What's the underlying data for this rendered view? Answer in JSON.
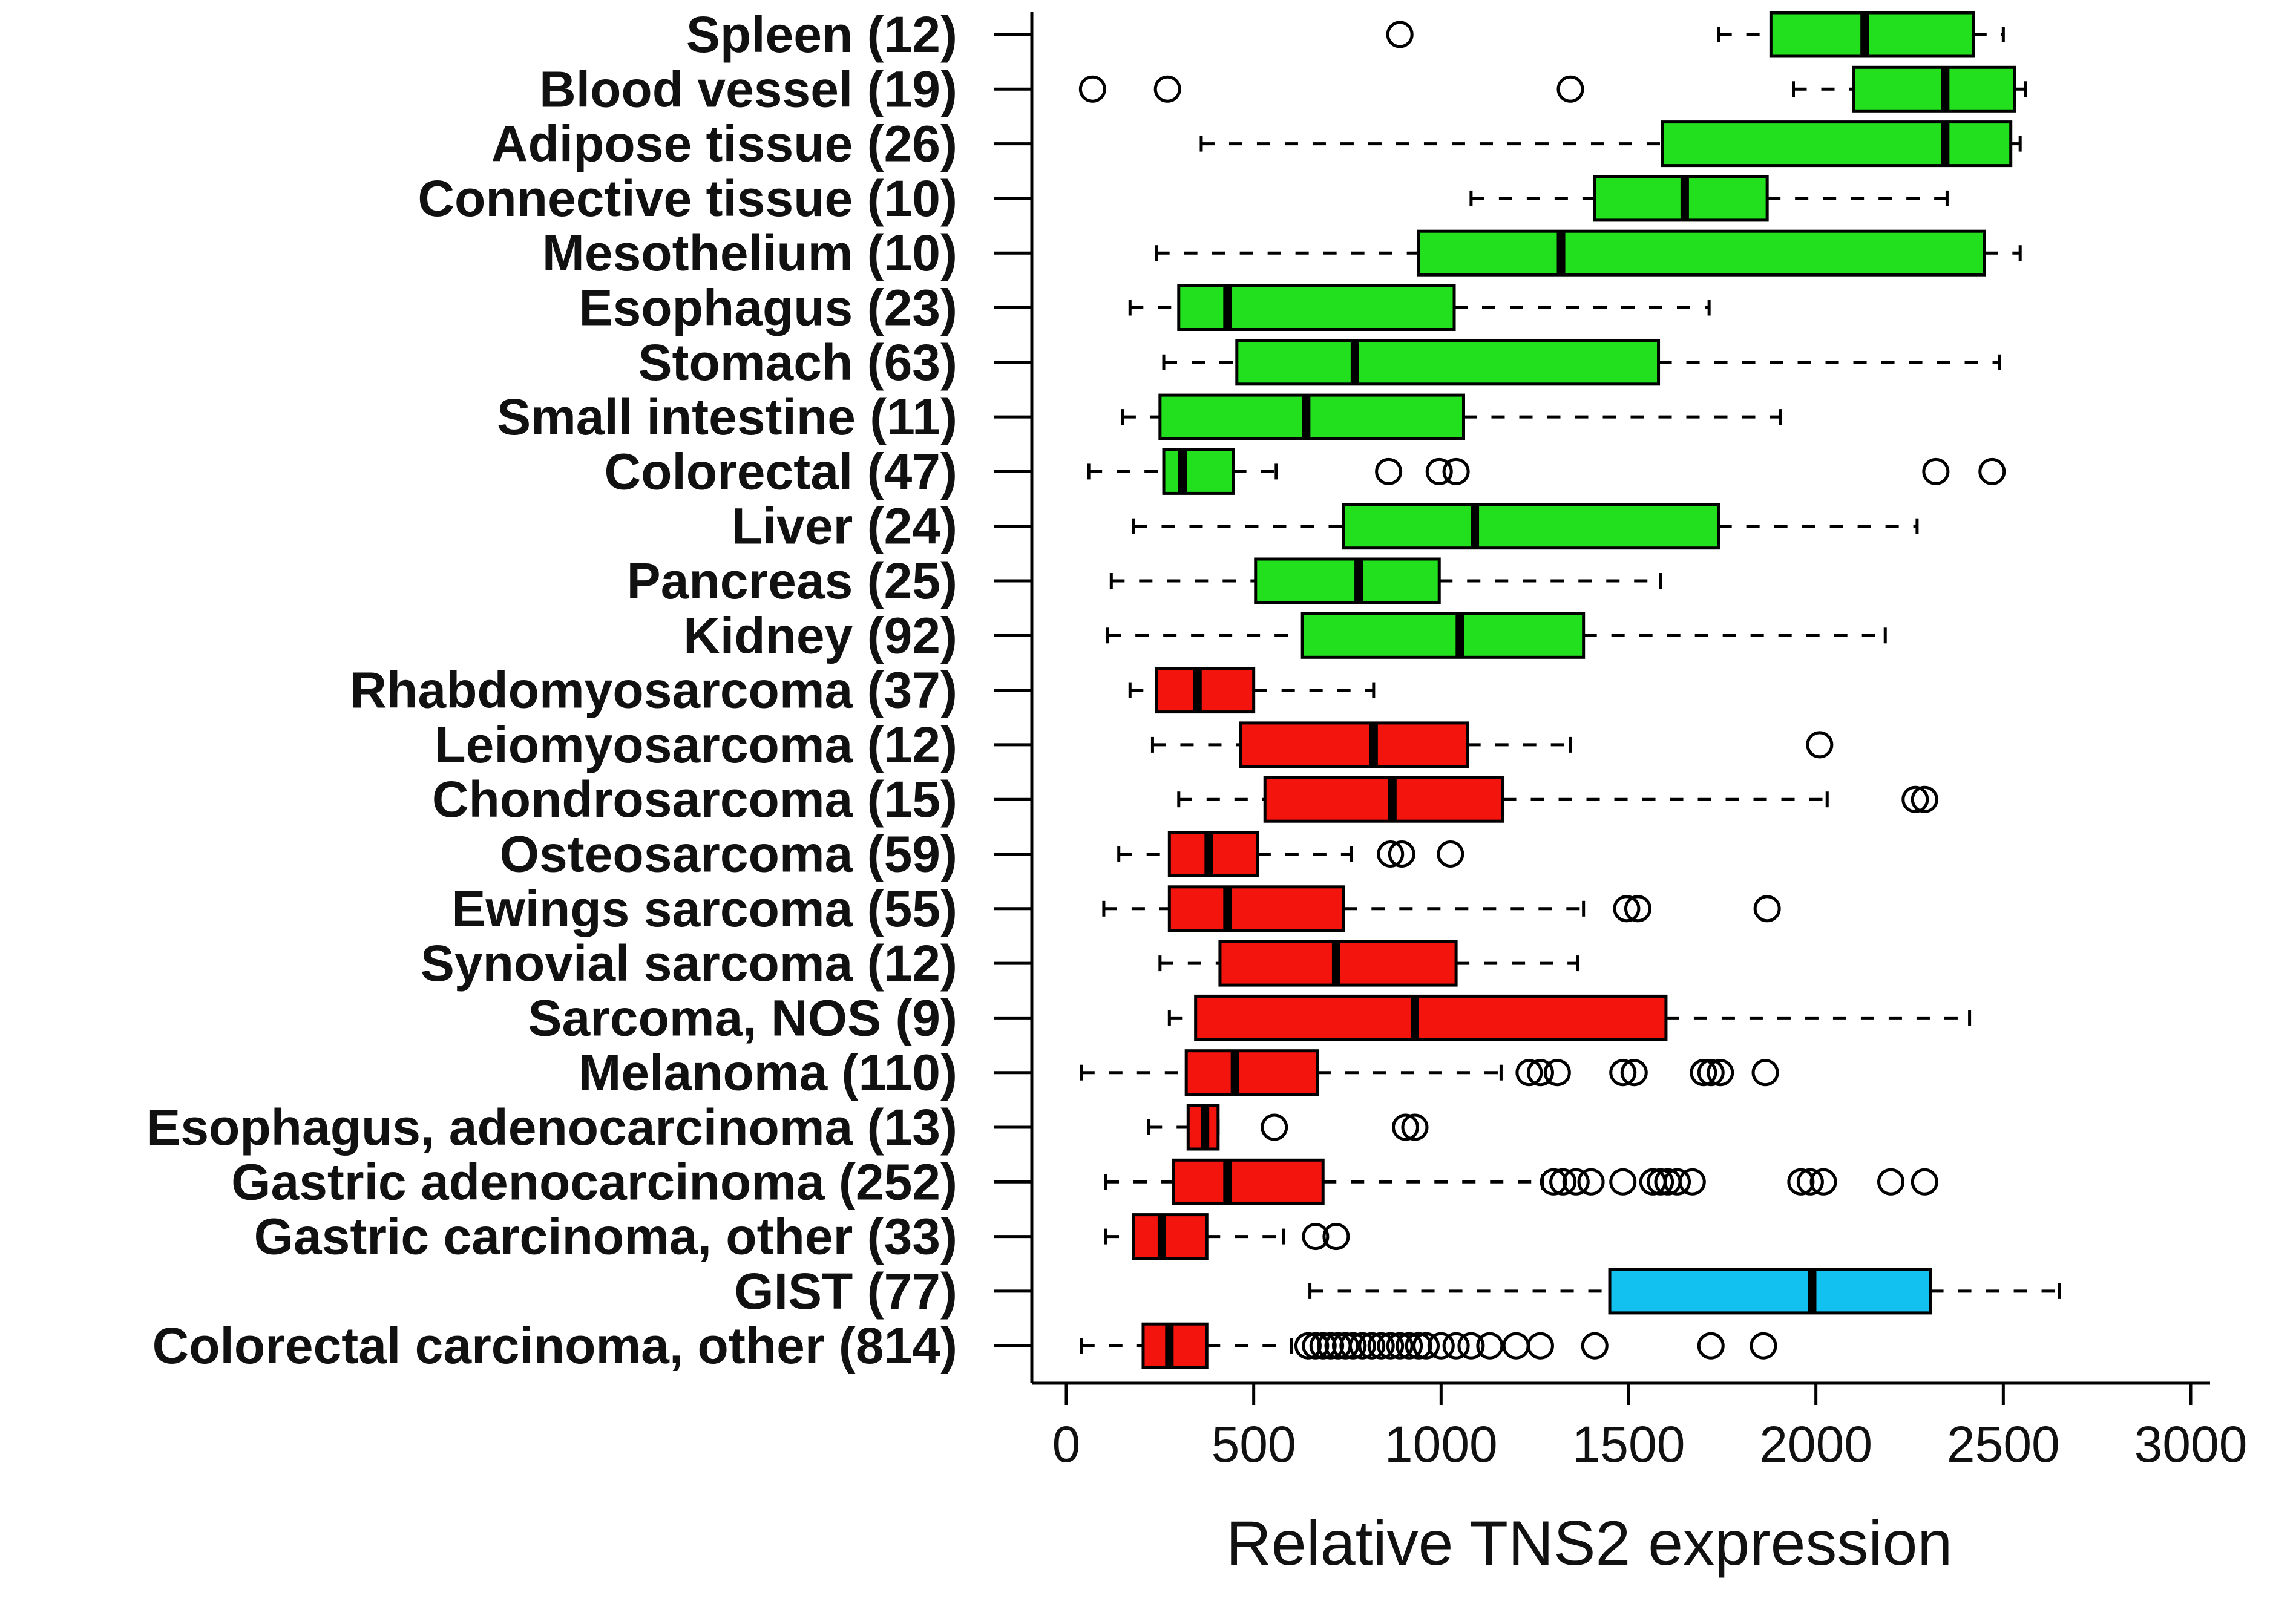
{
  "chart_data": {
    "type": "boxplot",
    "orientation": "horizontal",
    "xlabel": "Relative TNS2 expression",
    "xlim": [
      0,
      3000
    ],
    "xticks": [
      0,
      500,
      1000,
      1500,
      2000,
      2500,
      3000
    ],
    "xtick_labels": [
      "0",
      "500",
      "1000",
      "1500",
      "2000",
      "2500",
      "3000"
    ],
    "grid": false,
    "colors": {
      "normal": "#22e01e",
      "sarcoma": "#f4140e",
      "gist": "#12c1f0"
    },
    "groups": [
      {
        "label": "Spleen (12)",
        "group": "normal",
        "whisker_low": 1740,
        "q1": 1880,
        "median": 2130,
        "q3": 2420,
        "whisker_high": 2500,
        "outliers": [
          890
        ]
      },
      {
        "label": "Blood vessel (19)",
        "group": "normal",
        "whisker_low": 1940,
        "q1": 2100,
        "median": 2345,
        "q3": 2530,
        "whisker_high": 2560,
        "outliers": [
          70,
          270,
          1345
        ]
      },
      {
        "label": "Adipose tissue (26)",
        "group": "normal",
        "whisker_low": 360,
        "q1": 1590,
        "median": 2345,
        "q3": 2520,
        "whisker_high": 2545,
        "outliers": []
      },
      {
        "label": "Connective tissue (10)",
        "group": "normal",
        "whisker_low": 1080,
        "q1": 1410,
        "median": 1650,
        "q3": 1870,
        "whisker_high": 2350,
        "outliers": []
      },
      {
        "label": "Mesothelium (10)",
        "group": "normal",
        "whisker_low": 240,
        "q1": 940,
        "median": 1320,
        "q3": 2450,
        "whisker_high": 2545,
        "outliers": []
      },
      {
        "label": "Esophagus (23)",
        "group": "normal",
        "whisker_low": 170,
        "q1": 300,
        "median": 430,
        "q3": 1035,
        "whisker_high": 1715,
        "outliers": []
      },
      {
        "label": "Stomach (63)",
        "group": "normal",
        "whisker_low": 260,
        "q1": 455,
        "median": 770,
        "q3": 1580,
        "whisker_high": 2490,
        "outliers": []
      },
      {
        "label": "Small intestine (11)",
        "group": "normal",
        "whisker_low": 150,
        "q1": 250,
        "median": 640,
        "q3": 1060,
        "whisker_high": 1905,
        "outliers": []
      },
      {
        "label": "Colorectal (47)",
        "group": "normal",
        "whisker_low": 60,
        "q1": 260,
        "median": 310,
        "q3": 445,
        "whisker_high": 560,
        "outliers": [
          860,
          995,
          1040,
          2320,
          2470
        ]
      },
      {
        "label": "Liver (24)",
        "group": "normal",
        "whisker_low": 180,
        "q1": 740,
        "median": 1090,
        "q3": 1740,
        "whisker_high": 2270,
        "outliers": []
      },
      {
        "label": "Pancreas (25)",
        "group": "normal",
        "whisker_low": 120,
        "q1": 505,
        "median": 780,
        "q3": 995,
        "whisker_high": 1585,
        "outliers": []
      },
      {
        "label": "Kidney (92)",
        "group": "normal",
        "whisker_low": 110,
        "q1": 630,
        "median": 1050,
        "q3": 1380,
        "whisker_high": 2185,
        "outliers": []
      },
      {
        "label": "Rhabdomyosarcoma (37)",
        "group": "sarcoma",
        "whisker_low": 170,
        "q1": 240,
        "median": 350,
        "q3": 500,
        "whisker_high": 820,
        "outliers": []
      },
      {
        "label": "Leiomyosarcoma (12)",
        "group": "sarcoma",
        "whisker_low": 230,
        "q1": 465,
        "median": 820,
        "q3": 1070,
        "whisker_high": 1345,
        "outliers": [
          2010
        ]
      },
      {
        "label": "Chondrosarcoma (15)",
        "group": "sarcoma",
        "whisker_low": 300,
        "q1": 530,
        "median": 870,
        "q3": 1165,
        "whisker_high": 2030,
        "outliers": [
          2265,
          2290
        ]
      },
      {
        "label": "Osteosarcoma (59)",
        "group": "sarcoma",
        "whisker_low": 140,
        "q1": 275,
        "median": 380,
        "q3": 510,
        "whisker_high": 760,
        "outliers": [
          865,
          895,
          1025
        ]
      },
      {
        "label": "Ewings sarcoma (55)",
        "group": "sarcoma",
        "whisker_low": 100,
        "q1": 275,
        "median": 430,
        "q3": 740,
        "whisker_high": 1380,
        "outliers": [
          1495,
          1525,
          1870
        ]
      },
      {
        "label": "Synovial sarcoma (12)",
        "group": "sarcoma",
        "whisker_low": 250,
        "q1": 410,
        "median": 720,
        "q3": 1040,
        "whisker_high": 1365,
        "outliers": []
      },
      {
        "label": "Sarcoma, NOS (9)",
        "group": "sarcoma",
        "whisker_low": 275,
        "q1": 345,
        "median": 930,
        "q3": 1600,
        "whisker_high": 2410,
        "outliers": []
      },
      {
        "label": "Melanoma (110)",
        "group": "sarcoma",
        "whisker_low": 40,
        "q1": 320,
        "median": 450,
        "q3": 670,
        "whisker_high": 1160,
        "outliers": [
          1235,
          1265,
          1310,
          1485,
          1515,
          1700,
          1720,
          1745,
          1865
        ]
      },
      {
        "label": "Esophagus, adenocarcinoma (13)",
        "group": "sarcoma",
        "whisker_low": 220,
        "q1": 325,
        "median": 370,
        "q3": 405,
        "whisker_high": 405,
        "outliers": [
          555,
          905,
          930
        ]
      },
      {
        "label": "Gastric adenocarcinoma (252)",
        "group": "sarcoma",
        "whisker_low": 105,
        "q1": 285,
        "median": 430,
        "q3": 685,
        "whisker_high": 1270,
        "outliers": [
          1300,
          1325,
          1360,
          1400,
          1485,
          1565,
          1585,
          1605,
          1630,
          1670,
          1960,
          1985,
          2020,
          2200,
          2290
        ]
      },
      {
        "label": "Gastric carcinoma, other (33)",
        "group": "sarcoma",
        "whisker_low": 105,
        "q1": 180,
        "median": 255,
        "q3": 375,
        "whisker_high": 580,
        "outliers": [
          665,
          720
        ]
      },
      {
        "label": "GIST (77)",
        "group": "gist",
        "whisker_low": 650,
        "q1": 1450,
        "median": 1990,
        "q3": 2305,
        "whisker_high": 2650,
        "outliers": []
      },
      {
        "label": "Colorectal carcinoma, other (814)",
        "group": "sarcoma",
        "whisker_low": 40,
        "q1": 205,
        "median": 275,
        "q3": 375,
        "whisker_high": 600,
        "outliers": [
          645,
          665,
          685,
          705,
          725,
          745,
          765,
          790,
          815,
          840,
          865,
          890,
          915,
          940,
          960,
          1000,
          1040,
          1080,
          1130,
          1200,
          1265,
          1410,
          1720,
          1860
        ]
      }
    ]
  }
}
